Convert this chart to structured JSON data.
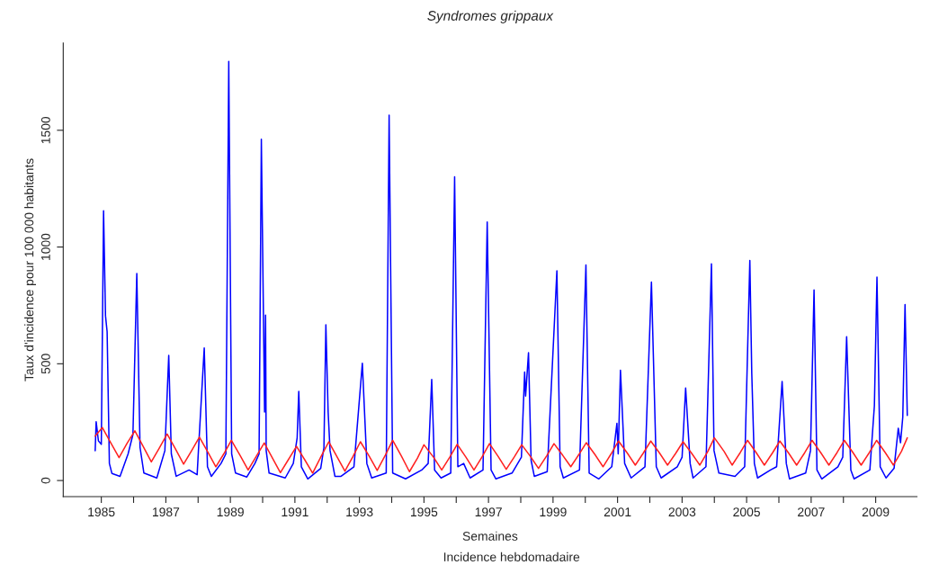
{
  "chart_data": {
    "type": "line",
    "title": "Syndromes grippaux",
    "xlabel": "Semaines",
    "subtitle": "Incidence hebdomadaire",
    "ylabel": "Taux d'incidence pour 100 000 habitants",
    "xlim": [
      1983.82,
      2010.28
    ],
    "ylim": [
      -69,
      1874
    ],
    "xticks": [
      1985,
      {
        "value": 1986,
        "label": null
      },
      1987,
      {
        "value": 1988,
        "label": null
      },
      1989,
      {
        "value": 1990,
        "label": null
      },
      1991,
      {
        "value": 1992,
        "label": null
      },
      1993,
      {
        "value": 1994,
        "label": null
      },
      1995,
      {
        "value": 1996,
        "label": null
      },
      1997,
      {
        "value": 1998,
        "label": null
      },
      1999,
      {
        "value": 2000,
        "label": null
      },
      2001,
      {
        "value": 2002,
        "label": null
      },
      2003,
      {
        "value": 2004,
        "label": null
      },
      2005,
      {
        "value": 2006,
        "label": null
      },
      2007,
      {
        "value": 2008,
        "label": null
      },
      2009
    ],
    "yticks": [
      0,
      500,
      1000,
      1500
    ],
    "grid": false,
    "legend": false,
    "marker": "none",
    "line_style": "solid",
    "series": [
      {
        "color": "#0000ff",
        "x": [
          1984.81,
          1984.84,
          1984.91,
          1985.0,
          1985.07,
          1985.13,
          1985.18,
          1985.25,
          1985.33,
          1985.58,
          1985.83,
          1985.98,
          1986.1,
          1986.2,
          1986.32,
          1986.72,
          1986.97,
          1987.09,
          1987.17,
          1987.32,
          1987.72,
          1987.97,
          1988.01,
          1988.19,
          1988.29,
          1988.41,
          1988.71,
          1988.86,
          1988.95,
          1989.04,
          1989.16,
          1989.51,
          1989.76,
          1989.89,
          1989.96,
          1990.06,
          1990.09,
          1990.11,
          1990.2,
          1990.7,
          1990.95,
          1991.07,
          1991.12,
          1991.2,
          1991.4,
          1991.8,
          1991.9,
          1991.96,
          1992.03,
          1992.09,
          1992.24,
          1992.43,
          1992.83,
          1993.09,
          1993.23,
          1993.38,
          1993.83,
          1993.92,
          1994.03,
          1994.43,
          1994.93,
          1995.13,
          1995.24,
          1995.33,
          1995.53,
          1995.83,
          1995.95,
          1996.05,
          1996.23,
          1996.43,
          1996.83,
          1996.96,
          1997.08,
          1997.23,
          1997.73,
          1998.02,
          1998.12,
          1998.15,
          1998.24,
          1998.32,
          1998.42,
          1998.82,
          1999.12,
          1999.22,
          1999.32,
          1999.82,
          2000.02,
          2000.12,
          2000.42,
          2000.82,
          2000.98,
          2001.02,
          2001.09,
          2001.22,
          2001.42,
          2001.85,
          2002.05,
          2002.2,
          2002.35,
          2002.85,
          2003.0,
          2003.11,
          2003.25,
          2003.34,
          2003.74,
          2003.91,
          2003.99,
          2004.14,
          2004.64,
          2004.94,
          2005.1,
          2005.16,
          2005.24,
          2005.34,
          2005.74,
          2005.93,
          2006.1,
          2006.23,
          2006.33,
          2006.83,
          2006.98,
          2007.09,
          2007.18,
          2007.33,
          2007.83,
          2007.98,
          2008.1,
          2008.23,
          2008.33,
          2008.82,
          2008.96,
          2009.04,
          2009.14,
          2009.32,
          2009.57,
          2009.7,
          2009.77,
          2009.84,
          2009.91,
          2009.98
        ],
        "values": [
          128,
          252,
          170,
          155,
          1155,
          705,
          637,
          73,
          30,
          18,
          114,
          197,
          887,
          142,
          32,
          11,
          128,
          536,
          114,
          18,
          45,
          25,
          128,
          568,
          59,
          18,
          73,
          114,
          1795,
          114,
          32,
          15,
          73,
          114,
          1462,
          293,
          708,
          128,
          32,
          11,
          73,
          183,
          382,
          59,
          7,
          52,
          142,
          667,
          293,
          128,
          18,
          18,
          59,
          502,
          73,
          11,
          32,
          1565,
          32,
          7,
          45,
          73,
          433,
          45,
          11,
          32,
          1301,
          59,
          73,
          11,
          45,
          1107,
          45,
          7,
          32,
          100,
          465,
          362,
          547,
          87,
          18,
          38,
          898,
          59,
          11,
          45,
          923,
          32,
          7,
          59,
          245,
          114,
          472,
          73,
          11,
          59,
          850,
          59,
          11,
          59,
          100,
          396,
          73,
          11,
          59,
          928,
          128,
          32,
          18,
          59,
          942,
          458,
          73,
          11,
          45,
          59,
          424,
          73,
          7,
          32,
          128,
          816,
          45,
          7,
          59,
          100,
          616,
          45,
          7,
          45,
          320,
          871,
          59,
          11,
          52,
          224,
          162,
          272,
          754,
          279
        ]
      },
      {
        "color": "#ff2020",
        "x": [
          1984.81,
          1985.03,
          1985.3,
          1985.55,
          1985.8,
          1986.04,
          1986.3,
          1986.55,
          1986.8,
          1987.04,
          1987.3,
          1987.55,
          1987.8,
          1988.04,
          1988.3,
          1988.55,
          1988.8,
          1989.03,
          1989.3,
          1989.55,
          1989.8,
          1990.05,
          1990.3,
          1990.55,
          1990.8,
          1991.05,
          1991.3,
          1991.55,
          1991.8,
          1992.05,
          1992.3,
          1992.55,
          1992.8,
          1993.03,
          1993.3,
          1993.55,
          1993.8,
          1994.03,
          1994.3,
          1994.55,
          1994.8,
          1995.0,
          1995.3,
          1995.55,
          1995.8,
          1996.03,
          1996.3,
          1996.55,
          1996.8,
          1997.03,
          1997.3,
          1997.55,
          1997.8,
          1998.03,
          1998.3,
          1998.55,
          1998.8,
          1999.03,
          1999.3,
          1999.55,
          1999.8,
          2000.03,
          2000.3,
          2000.55,
          2000.8,
          2001.03,
          2001.3,
          2001.55,
          2001.8,
          2002.03,
          2002.3,
          2002.55,
          2002.8,
          2003.03,
          2003.3,
          2003.55,
          2003.8,
          2004.0,
          2004.3,
          2004.55,
          2004.8,
          2005.03,
          2005.3,
          2005.55,
          2005.8,
          2006.03,
          2006.3,
          2006.55,
          2006.8,
          2007.03,
          2007.3,
          2007.55,
          2007.8,
          2008.03,
          2008.3,
          2008.55,
          2008.8,
          2009.03,
          2009.3,
          2009.55,
          2009.8,
          2009.98
        ],
        "values": [
          190,
          227,
          160,
          98,
          160,
          213,
          145,
          80,
          140,
          199,
          135,
          70,
          128,
          186,
          122,
          59,
          115,
          172,
          108,
          45,
          103,
          161,
          97,
          34,
          90,
          146,
          90,
          32,
          100,
          166,
          103,
          40,
          103,
          166,
          105,
          43,
          108,
          172,
          105,
          38,
          96,
          153,
          99,
          45,
          100,
          155,
          100,
          45,
          101,
          158,
          103,
          48,
          101,
          153,
          103,
          52,
          105,
          158,
          108,
          59,
          111,
          162,
          111,
          59,
          114,
          169,
          118,
          66,
          118,
          169,
          118,
          66,
          116,
          166,
          116,
          66,
          125,
          183,
          125,
          66,
          119,
          172,
          119,
          66,
          118,
          169,
          118,
          66,
          119,
          172,
          119,
          66,
          119,
          172,
          119,
          66,
          119,
          172,
          119,
          66,
          125,
          183
        ]
      }
    ]
  }
}
